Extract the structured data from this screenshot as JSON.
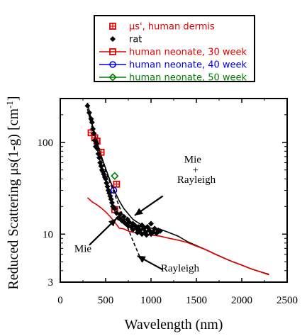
{
  "chart_data": {
    "type": "scatter",
    "title": "",
    "xlabel": "Wavelength  (nm)",
    "ylabel": "Reduced Scattering  μs(1-g)  [cm",
    "ylabel_superscript": "-1",
    "ylabel_suffix": "]",
    "xlim": [
      0,
      2500
    ],
    "ylim": [
      3,
      300
    ],
    "y_scale": "log",
    "xticks": [
      0,
      500,
      1000,
      1500,
      2000,
      2500
    ],
    "xtick_labels": [
      "0",
      "500",
      "1000",
      "1500",
      "2000",
      "2500"
    ],
    "yticks": [
      3,
      10,
      100
    ],
    "ytick_labels": [
      "3",
      "10",
      "100"
    ],
    "grid": false,
    "legend_position": "top-right",
    "legend": [
      {
        "label": "μs', human dermis",
        "color": "#e00000",
        "marker": "square-cross",
        "line": false
      },
      {
        "label": "rat",
        "color": "#000000",
        "marker": "diamond",
        "line": false
      },
      {
        "label": "human neonate, 30 week",
        "color": "#e00000",
        "marker": "square",
        "line": true
      },
      {
        "label": "human neonate, 40 week",
        "color": "#0000e0",
        "marker": "circle",
        "line": true
      },
      {
        "label": "human neonate, 50 week",
        "color": "#008000",
        "marker": "diamond-open",
        "line": true
      }
    ],
    "series": [
      {
        "name": "μs', human dermis",
        "kind": "markers",
        "marker": "square-cross",
        "color": "#e00000",
        "x": [
          340,
          380,
          405,
          450,
          600,
          620
        ],
        "y": [
          127,
          112,
          103,
          78,
          18.5,
          35
        ]
      },
      {
        "name": "rat",
        "kind": "markers",
        "marker": "diamond",
        "color": "#000000",
        "x": [
          300,
          320,
          340,
          350,
          360,
          370,
          380,
          390,
          400,
          410,
          420,
          430,
          440,
          450,
          460,
          470,
          480,
          490,
          500,
          510,
          520,
          530,
          540,
          550,
          560,
          570,
          580,
          600,
          620,
          640,
          660,
          680,
          700,
          720,
          740,
          760,
          780,
          800,
          820,
          840,
          860,
          880,
          900,
          920,
          940,
          960,
          980,
          1000,
          1020,
          1040,
          1060,
          1080,
          1100,
          1000,
          950,
          900,
          850,
          800,
          750,
          700,
          650
        ],
        "y": [
          250,
          210,
          180,
          165,
          140,
          125,
          105,
          90,
          98,
          85,
          75,
          68,
          60,
          55,
          50,
          48,
          45,
          42,
          40,
          36,
          33,
          30,
          28,
          26,
          24,
          22,
          20,
          19,
          17,
          15,
          16.5,
          14,
          15.5,
          13,
          14.5,
          13.5,
          12,
          13,
          12.5,
          11.5,
          12,
          11,
          12.5,
          11.5,
          10.5,
          12,
          11,
          13,
          10.5,
          11.5,
          10.2,
          11,
          10.8,
          10,
          9.8,
          10,
          10.4,
          11.2,
          12.3,
          13.6,
          15
        ]
      },
      {
        "name": "human neonate, 30 week",
        "kind": "markers",
        "marker": "square",
        "color": "#e00000",
        "x": [],
        "y": []
      },
      {
        "name": "human neonate, 40 week",
        "kind": "markers",
        "marker": "circle",
        "color": "#0000e0",
        "x": [
          590
        ],
        "y": [
          30
        ]
      },
      {
        "name": "human neonate, 50 week",
        "kind": "markers",
        "marker": "diamond-open",
        "color": "#008000",
        "x": [
          600
        ],
        "y": [
          43
        ]
      },
      {
        "name": "Mie + Rayleigh",
        "kind": "line",
        "color": "#000000",
        "dashed": false,
        "x": [
          300,
          350,
          400,
          450,
          500,
          550,
          600,
          650,
          700,
          800,
          900,
          1000,
          1100,
          1200,
          1300,
          1400,
          1500,
          1600,
          1700,
          1800,
          1900,
          2000,
          2100,
          2200,
          2300
        ],
        "y": [
          270,
          160,
          105,
          72,
          52,
          38,
          29,
          23,
          19,
          14.5,
          12.5,
          11.6,
          11.3,
          10.4,
          9.5,
          8.3,
          7.5,
          6.8,
          6.1,
          5.5,
          5.0,
          4.6,
          4.2,
          3.9,
          3.65
        ]
      },
      {
        "name": "Mie",
        "kind": "line",
        "color": "#e00000",
        "dashed": false,
        "x": [
          300,
          350,
          400,
          450,
          500,
          550,
          600,
          650,
          700,
          750,
          800,
          900,
          1000,
          1100,
          1200,
          1300,
          1400,
          1500,
          1600,
          1700,
          1800,
          1900,
          2000,
          2100,
          2200,
          2300
        ],
        "y": [
          25,
          22.5,
          21,
          19.3,
          17.5,
          15.5,
          13.5,
          11.6,
          11.4,
          10.8,
          10.5,
          10,
          9.8,
          9.5,
          9.0,
          8.6,
          8.1,
          7.4,
          6.8,
          6.1,
          5.5,
          5.0,
          4.6,
          4.2,
          3.9,
          3.6
        ]
      },
      {
        "name": "Rayleigh",
        "kind": "line",
        "color": "#000000",
        "dashed": true,
        "x": [
          300,
          350,
          400,
          450,
          500,
          550,
          600,
          650,
          700,
          750,
          800,
          850,
          900
        ],
        "y": [
          230,
          145,
          98,
          68,
          49,
          36,
          27,
          20,
          15,
          11.3,
          8.5,
          6.5,
          5.0
        ]
      }
    ],
    "annotations": [
      {
        "text": "Mie",
        "x": 1460,
        "y": 60
      },
      {
        "text": "+",
        "x": 1490,
        "y": 46
      },
      {
        "text": "Rayleigh",
        "x": 1500,
        "y": 36
      },
      {
        "text": "Mie",
        "x": 250,
        "y": 6.4
      },
      {
        "text": "Rayleigh",
        "x": 1320,
        "y": 3.9
      }
    ],
    "arrows": [
      {
        "from": [
          1130,
          26
        ],
        "to": [
          820,
          16
        ]
      },
      {
        "from": [
          320,
          7.6
        ],
        "to": [
          620,
          14.8
        ]
      },
      {
        "from": [
          1130,
          4.1
        ],
        "to": [
          850,
          5.8
        ]
      }
    ]
  }
}
